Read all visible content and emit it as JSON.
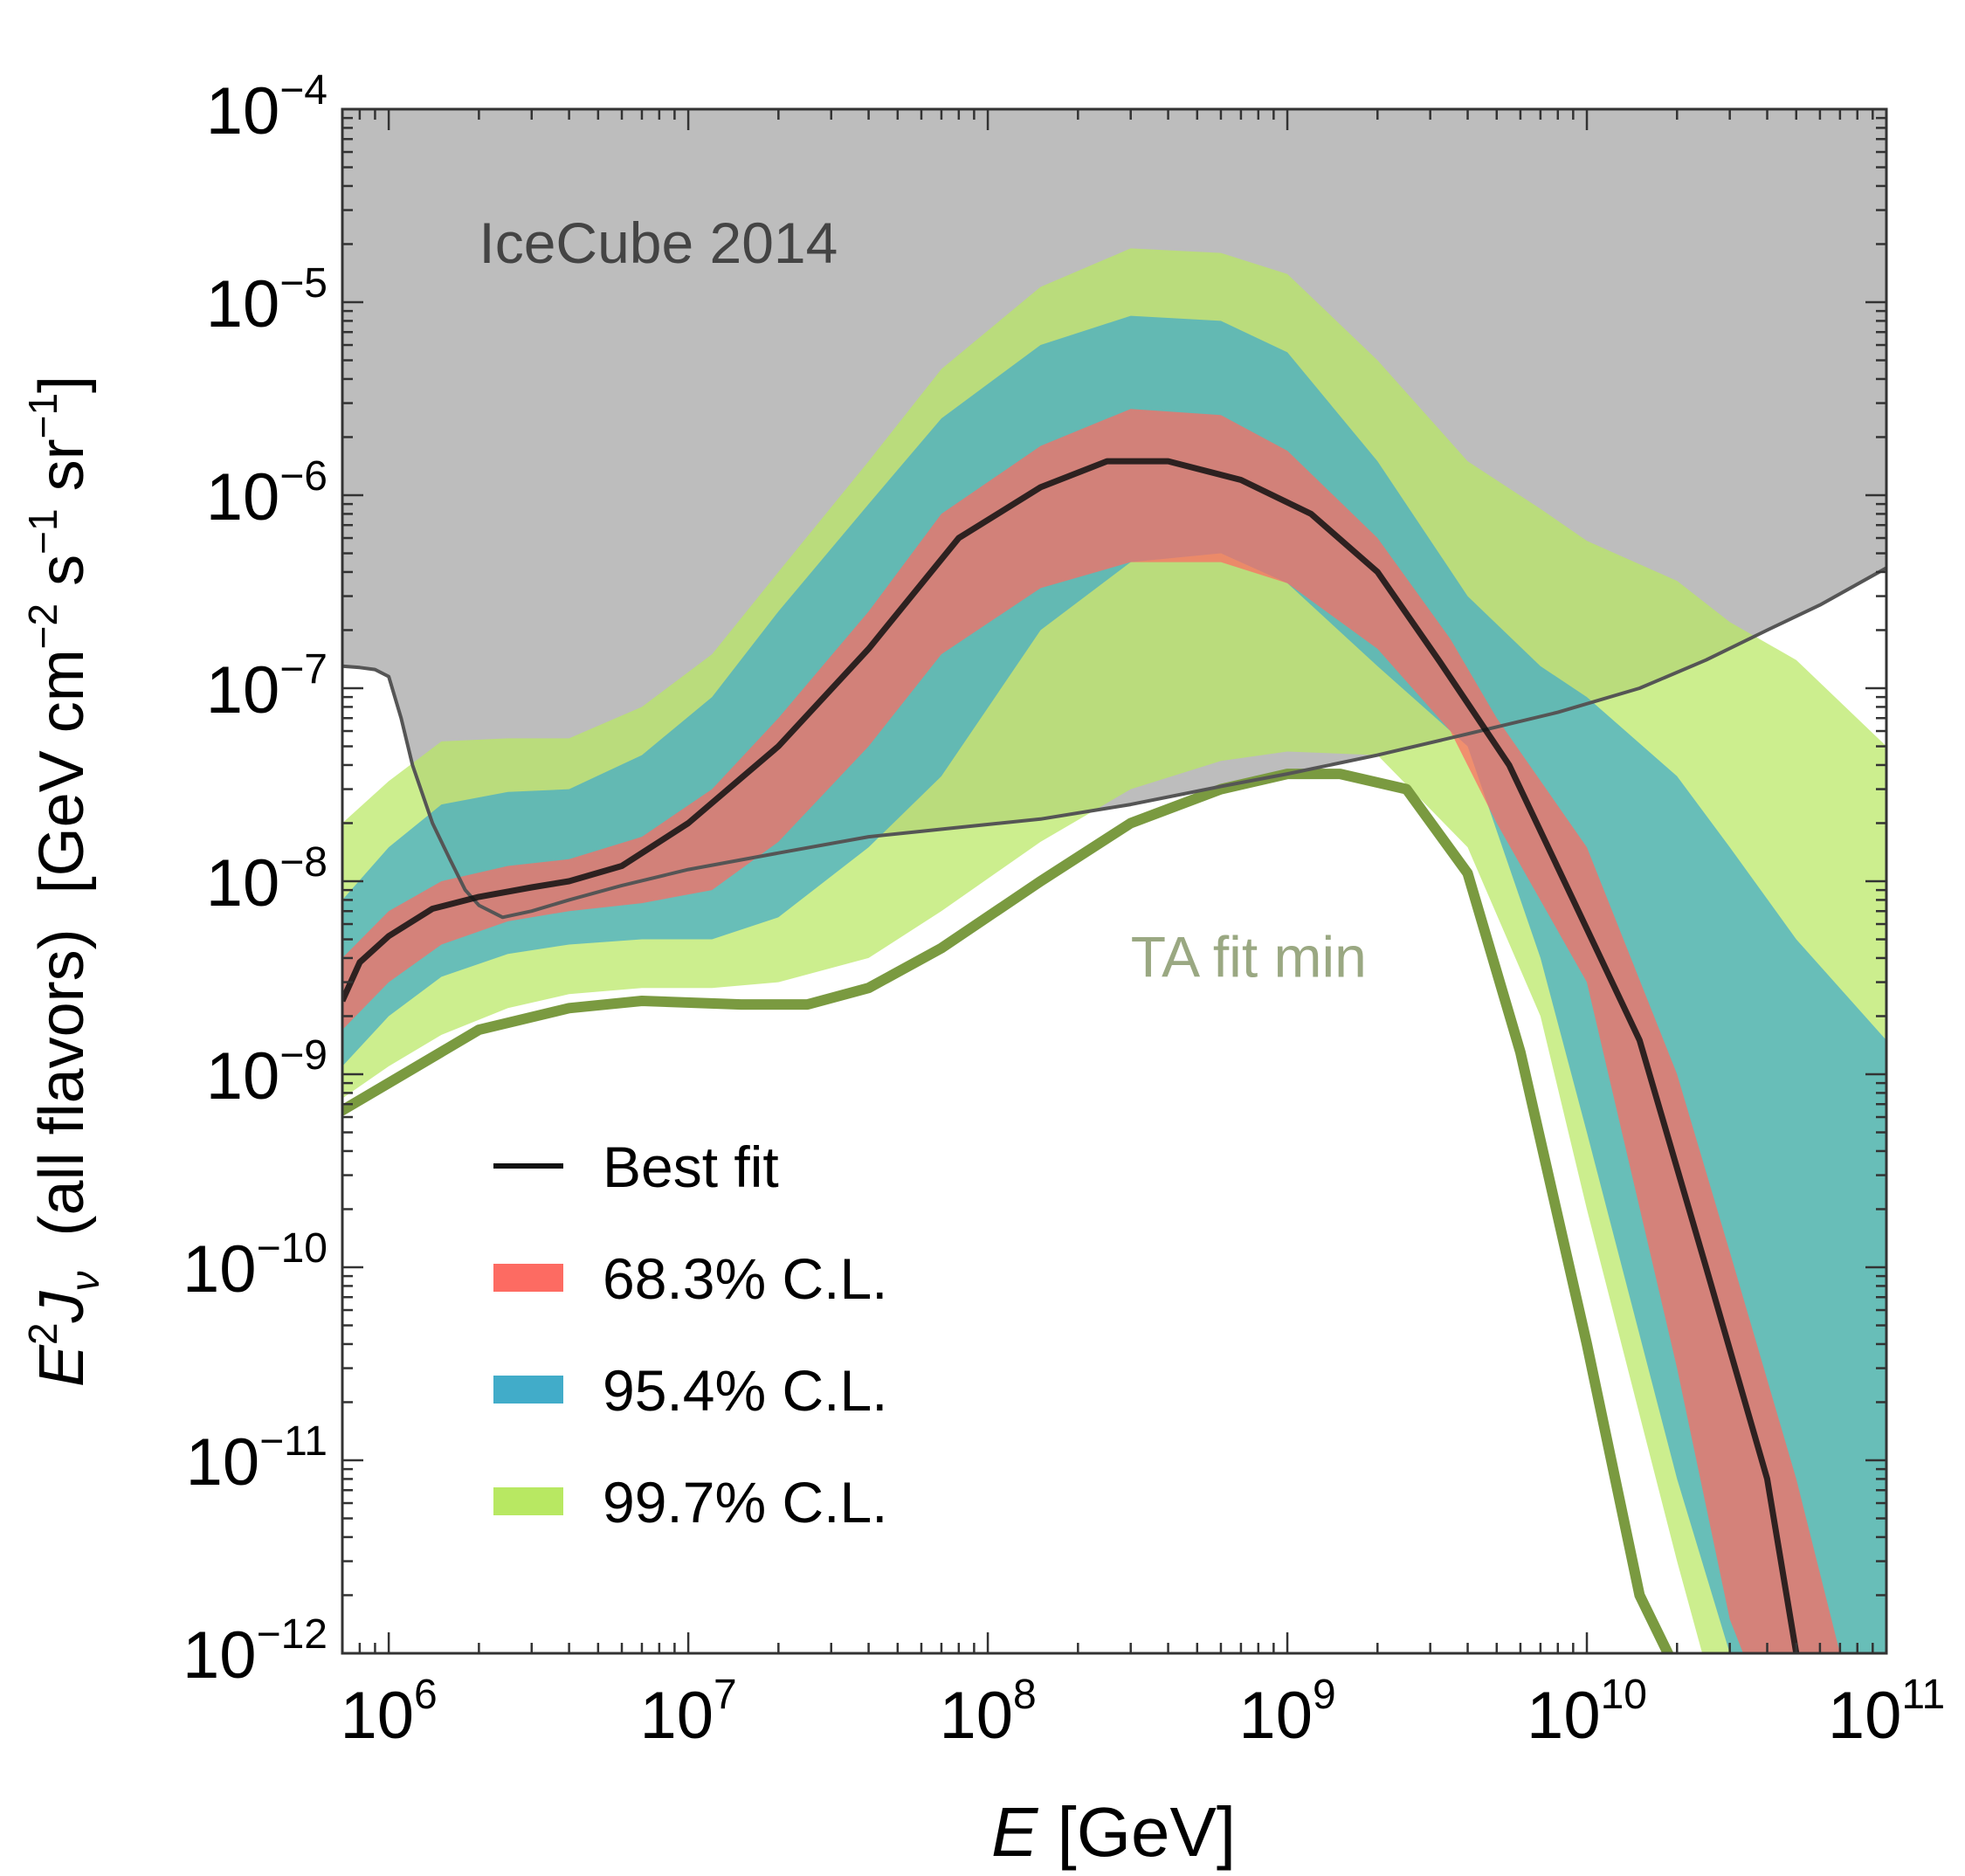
{
  "chart_data": {
    "type": "area",
    "xscale": "log",
    "yscale": "log",
    "xlim": [
      700000,
      100000000000
    ],
    "ylim": [
      1e-12,
      0.0001
    ],
    "grid": false,
    "legend_position": "lower-left",
    "xlabel": {
      "italic": "E",
      "rest": " [GeV]"
    },
    "ylabel": {
      "e2": "E",
      "sup": "2",
      "j": "J",
      "sub": "ν",
      "mid": "(all flavors)",
      "units": "[GeV cm",
      "m2": "−2",
      "s": " s",
      "m1a": "−1",
      "sr": " sr",
      "m1b": "−1",
      "close": "]"
    },
    "xticks": [
      {
        "value": 1000000,
        "base": "10",
        "exp": "6"
      },
      {
        "value": 10000000,
        "base": "10",
        "exp": "7"
      },
      {
        "value": 100000000,
        "base": "10",
        "exp": "8"
      },
      {
        "value": 1000000000,
        "base": "10",
        "exp": "9"
      },
      {
        "value": 10000000000,
        "base": "10",
        "exp": "10"
      },
      {
        "value": 100000000000,
        "base": "10",
        "exp": "11"
      }
    ],
    "yticks": [
      {
        "value": 0.0001,
        "base": "10",
        "exp": "−4"
      },
      {
        "value": 1e-05,
        "base": "10",
        "exp": "−5"
      },
      {
        "value": 1e-06,
        "base": "10",
        "exp": "−6"
      },
      {
        "value": 1e-07,
        "base": "10",
        "exp": "−7"
      },
      {
        "value": 1e-08,
        "base": "10",
        "exp": "−8"
      },
      {
        "value": 1e-09,
        "base": "10",
        "exp": "−9"
      },
      {
        "value": 1e-10,
        "base": "10",
        "exp": "−10"
      },
      {
        "value": 1e-11,
        "base": "10",
        "exp": "−11"
      },
      {
        "value": 1e-12,
        "base": "10",
        "exp": "−12"
      }
    ],
    "annotations": [
      {
        "text": "IceCube 2014",
        "x": 2000000,
        "y": 1.6e-05,
        "color": "#444444"
      },
      {
        "text": "TA fit min",
        "x": 300000000,
        "y": 3.2e-09,
        "color": "#9aa882"
      }
    ],
    "icecube_2014": {
      "name": "IceCube 2014",
      "fill": "#bdbdbd",
      "line": "#555555",
      "x": [
        700000,
        800000,
        900000,
        1000000,
        1100000,
        1200000,
        1400000,
        1600000,
        1800000,
        2000000,
        2400000,
        3000000,
        4000000,
        6000000,
        10000000,
        20000000,
        40000000,
        80000000,
        150000000,
        300000000,
        600000000,
        1000000000,
        2000000000,
        4000000000,
        8000000000,
        15000000000,
        25000000000,
        40000000000,
        60000000000,
        100000000000
      ],
      "y": [
        1.3e-07,
        1.28e-07,
        1.25e-07,
        1.15e-07,
        7e-08,
        4e-08,
        2e-08,
        1.3e-08,
        9e-09,
        7.5e-09,
        6.5e-09,
        7e-09,
        8e-09,
        9.5e-09,
        1.15e-08,
        1.4e-08,
        1.7e-08,
        1.9e-08,
        2.1e-08,
        2.5e-08,
        3.1e-08,
        3.6e-08,
        4.5e-08,
        5.8e-08,
        7.5e-08,
        1e-07,
        1.4e-07,
        2e-07,
        2.7e-07,
        4.2e-07
      ]
    },
    "ta_fit_min": {
      "name": "TA fit min",
      "color": "#7a9a40",
      "x": [
        700000,
        1000000,
        2000000,
        4000000,
        7000000,
        15000000,
        25000000,
        40000000,
        70000000,
        150000000,
        300000000,
        600000000,
        1000000000,
        1500000000,
        2500000000,
        4000000000,
        6000000000,
        10000000000,
        15000000000,
        20000000000,
        25000000000
      ],
      "y": [
        6.5e-10,
        9e-10,
        1.7e-09,
        2.2e-09,
        2.4e-09,
        2.3e-09,
        2.3e-09,
        2.8e-09,
        4.5e-09,
        1e-08,
        2e-08,
        3e-08,
        3.6e-08,
        3.6e-08,
        3e-08,
        1.1e-08,
        1.3e-09,
        4e-11,
        2e-12,
        8e-13,
        6e-13
      ]
    },
    "series": [
      {
        "name": "99.7% C.L.",
        "color": "#b8e862",
        "x": [
          700000,
          1000000,
          1500000,
          2500000,
          4000000,
          7000000,
          12000000,
          20000000,
          40000000,
          70000000,
          150000000,
          300000000,
          600000000,
          1000000000,
          2000000000,
          4000000000,
          7000000000,
          10000000000,
          20000000000,
          30000000000,
          50000000000,
          100000000000
        ],
        "upper": [
          2e-08,
          3.3e-08,
          5.3e-08,
          5.5e-08,
          5.5e-08,
          8e-08,
          1.5e-07,
          4e-07,
          1.5e-06,
          4.5e-06,
          1.2e-05,
          1.9e-05,
          1.8e-05,
          1.4e-05,
          5e-06,
          1.5e-06,
          8.5e-07,
          5.8e-07,
          3.6e-07,
          2.2e-07,
          1.4e-07,
          5e-08
        ],
        "lower": [
          7.5e-10,
          1.1e-09,
          1.6e-09,
          2.2e-09,
          2.6e-09,
          2.8e-09,
          2.8e-09,
          3e-09,
          4e-09,
          7e-09,
          1.6e-08,
          3e-08,
          4.2e-08,
          4.7e-08,
          4.5e-08,
          1.5e-08,
          2e-09,
          2e-10,
          3e-12,
          3e-13,
          2e-13,
          2e-13
        ]
      },
      {
        "name": "95.4% C.L.",
        "color": "#41acc9",
        "x": [
          700000,
          1000000,
          1500000,
          2500000,
          4000000,
          7000000,
          12000000,
          20000000,
          40000000,
          70000000,
          150000000,
          300000000,
          600000000,
          1000000000,
          2000000000,
          4000000000,
          7000000000,
          10000000000,
          20000000000,
          30000000000,
          50000000000,
          100000000000
        ],
        "upper": [
          8e-09,
          1.5e-08,
          2.5e-08,
          2.9e-08,
          3e-08,
          4.5e-08,
          9e-08,
          2.5e-07,
          9e-07,
          2.5e-06,
          6e-06,
          8.5e-06,
          8e-06,
          5.5e-06,
          1.5e-06,
          3e-07,
          1.3e-07,
          9e-08,
          3.5e-08,
          1.5e-08,
          5e-09,
          1.5e-09
        ],
        "lower": [
          1.1e-09,
          2e-09,
          3.2e-09,
          4.2e-09,
          4.7e-09,
          5e-09,
          5e-09,
          6.5e-09,
          1.5e-08,
          3.5e-08,
          2e-07,
          4.5e-07,
          5e-07,
          3.5e-07,
          1.3e-07,
          5e-08,
          4e-09,
          5e-10,
          8e-12,
          1e-12,
          2e-13,
          2e-13
        ]
      },
      {
        "name": "68.3% C.L.",
        "color": "#fd6b62",
        "x": [
          700000,
          1000000,
          1500000,
          2500000,
          4000000,
          7000000,
          12000000,
          20000000,
          40000000,
          70000000,
          150000000,
          300000000,
          600000000,
          1000000000,
          2000000000,
          3500000000,
          5000000000,
          10000000000,
          20000000000,
          30000000000,
          50000000000,
          70000000000,
          100000000000
        ],
        "upper": [
          4e-09,
          7e-09,
          1e-08,
          1.2e-08,
          1.3e-08,
          1.7e-08,
          3e-08,
          7e-08,
          2.5e-07,
          8e-07,
          1.8e-06,
          2.8e-06,
          2.6e-06,
          1.7e-06,
          6e-07,
          1.8e-07,
          7e-08,
          1.5e-08,
          1e-09,
          1.2e-10,
          8e-12,
          1e-12,
          2e-13
        ],
        "lower": [
          1.7e-09,
          3e-09,
          4.7e-09,
          6.2e-09,
          7e-09,
          7.7e-09,
          9e-09,
          1.6e-08,
          5e-08,
          1.5e-07,
          3.3e-07,
          4.5e-07,
          4.5e-07,
          3.5e-07,
          1.6e-07,
          6e-08,
          2e-08,
          3e-09,
          3e-11,
          1.5e-12,
          2e-13,
          2e-13,
          2e-13
        ]
      }
    ],
    "best_fit": {
      "name": "Best fit",
      "color": "#111111",
      "x": [
        700000,
        800000,
        1000000,
        1400000,
        2000000,
        3000000,
        4000000,
        6000000,
        10000000,
        20000000,
        40000000,
        80000000,
        150000000,
        250000000,
        400000000,
        700000000,
        1200000000,
        2000000000,
        3200000000,
        5500000000,
        9000000000,
        15000000000,
        25000000000,
        40000000000,
        50000000000
      ],
      "y": [
        2.4e-09,
        3.8e-09,
        5.2e-09,
        7.2e-09,
        8.3e-09,
        9.3e-09,
        1e-08,
        1.2e-08,
        2e-08,
        5e-08,
        1.6e-07,
        6e-07,
        1.1e-06,
        1.5e-06,
        1.5e-06,
        1.2e-06,
        8e-07,
        4e-07,
        1.4e-07,
        4e-08,
        8e-09,
        1.5e-09,
        1e-10,
        8e-12,
        1e-12
      ]
    },
    "legend": [
      {
        "label": "Best fit",
        "kind": "line",
        "color": "#111111"
      },
      {
        "label": "68.3% C.L.",
        "kind": "band",
        "color": "#fd6b62"
      },
      {
        "label": "95.4% C.L.",
        "kind": "band",
        "color": "#41acc9"
      },
      {
        "label": "99.7% C.L.",
        "kind": "band",
        "color": "#b8e862"
      }
    ]
  }
}
